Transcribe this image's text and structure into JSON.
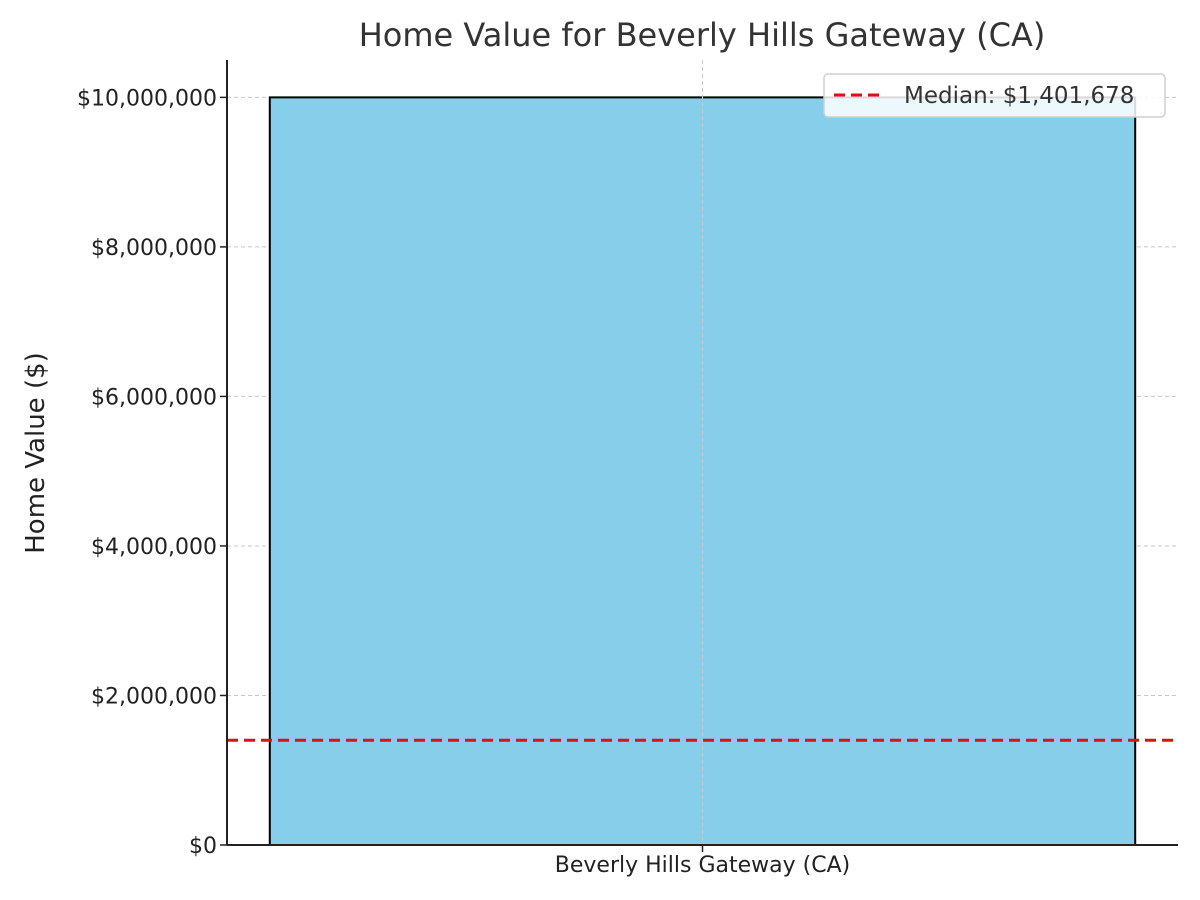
{
  "chart_data": {
    "type": "bar",
    "title": "Home Value for Beverly Hills Gateway (CA)",
    "xlabel": "",
    "ylabel": "Home Value ($)",
    "categories": [
      "Beverly Hills Gateway (CA)"
    ],
    "values": [
      10000000
    ],
    "ylim": [
      0,
      10500000
    ],
    "y_ticks": [
      0,
      2000000,
      4000000,
      6000000,
      8000000,
      10000000
    ],
    "y_tick_labels": [
      "$0",
      "$2,000,000",
      "$4,000,000",
      "$6,000,000",
      "$8,000,000",
      "$10,000,000"
    ],
    "grid": true,
    "reference_line": {
      "value": 1401678,
      "label": "Median: $1,401,678",
      "style": "dashed"
    },
    "legend": {
      "placement": "top-right",
      "entries": [
        "Median: $1,401,678"
      ]
    },
    "colors": {
      "bar": "#87CEEB",
      "bar_edge": "#000000",
      "median_line": "#dd1111",
      "grid": "#c8c8c8",
      "axis": "#222222"
    }
  }
}
